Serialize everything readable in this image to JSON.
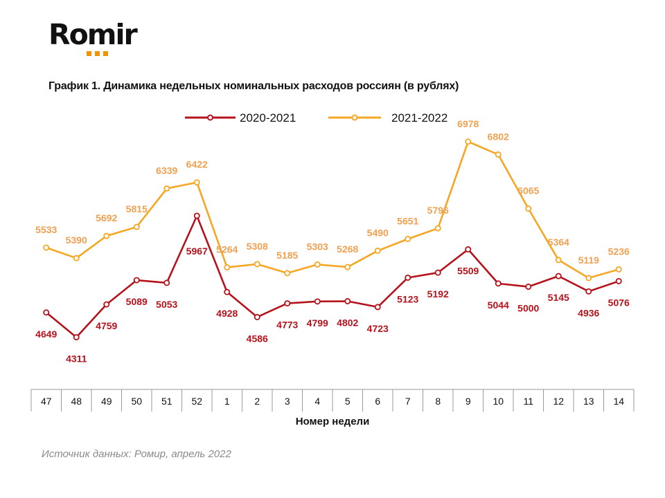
{
  "brand": {
    "name": "Romir"
  },
  "chart_data": {
    "type": "line",
    "title": "График 1. Динамика недельных номинальных расходов россиян (в рублях)",
    "xlabel": "Номер недели",
    "ylabel": "",
    "categories": [
      "47",
      "48",
      "49",
      "50",
      "51",
      "52",
      "1",
      "2",
      "3",
      "4",
      "5",
      "6",
      "7",
      "8",
      "9",
      "10",
      "11",
      "12",
      "13",
      "14"
    ],
    "ylim": [
      3600,
      7400
    ],
    "grid": false,
    "legend_position": "top-center",
    "series": [
      {
        "name": "2020-2021",
        "color": "#b5121b",
        "values": [
          4649,
          4311,
          4759,
          5089,
          5053,
          5967,
          4928,
          4586,
          4773,
          4799,
          4802,
          4723,
          5123,
          5192,
          5509,
          5044,
          5000,
          5145,
          4936,
          5076
        ]
      },
      {
        "name": "2021-2022",
        "color": "#f5a623",
        "values": [
          5533,
          5390,
          5692,
          5815,
          6339,
          6422,
          5264,
          5308,
          5185,
          5303,
          5268,
          5490,
          5651,
          5796,
          6978,
          6802,
          6065,
          5364,
          5119,
          5236
        ]
      }
    ]
  },
  "source": "Источник данных: Ромир, апрель 2022"
}
